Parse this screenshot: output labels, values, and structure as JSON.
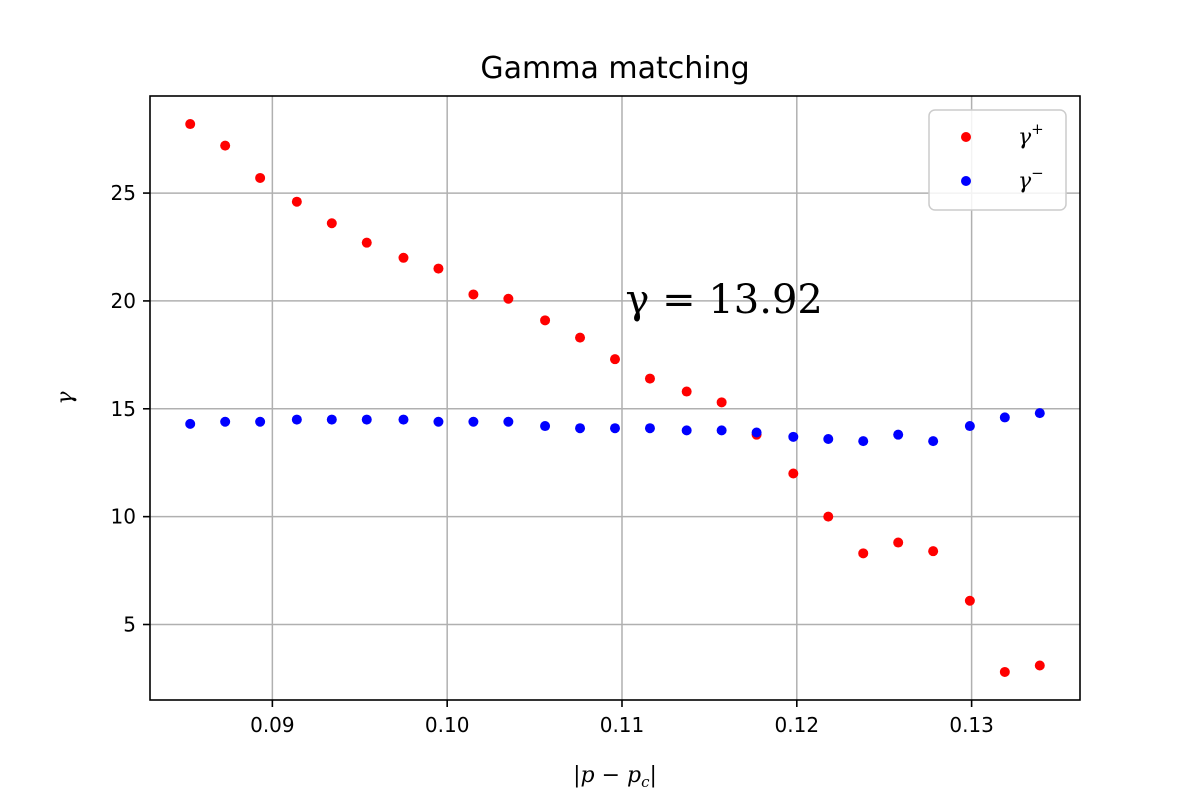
{
  "chart_data": {
    "type": "scatter",
    "title": "Gamma matching",
    "xlabel": "|p − p",
    "xlabel_sub": "c",
    "xlabel_end": "|",
    "ylabel": "γ",
    "xlim": [
      0.083,
      0.1362
    ],
    "ylim": [
      1.5,
      29.5
    ],
    "xticks": [
      0.09,
      0.1,
      0.11,
      0.12,
      0.13
    ],
    "xtick_labels": [
      "0.09",
      "0.10",
      "0.11",
      "0.12",
      "0.13"
    ],
    "yticks": [
      5,
      10,
      15,
      20,
      25
    ],
    "ytick_labels": [
      "5",
      "10",
      "15",
      "20",
      "25"
    ],
    "grid": true,
    "legend_position": "top-right",
    "annotation": {
      "text": "γ = 13.92",
      "x": 0.1102,
      "y": 20.1
    },
    "series": [
      {
        "name": "γ",
        "name_sup": "+",
        "color": "#ff0000",
        "x": [
          0.0853,
          0.0873,
          0.0893,
          0.0914,
          0.0934,
          0.0954,
          0.0975,
          0.0995,
          0.1015,
          0.1035,
          0.1056,
          0.1076,
          0.1096,
          0.1116,
          0.1137,
          0.1157,
          0.1177,
          0.1198,
          0.1218,
          0.1238,
          0.1258,
          0.1278,
          0.1299,
          0.1319,
          0.1339
        ],
        "y": [
          28.2,
          27.2,
          25.7,
          24.6,
          23.6,
          22.7,
          22.0,
          21.5,
          20.3,
          20.1,
          19.1,
          18.3,
          17.3,
          16.4,
          15.8,
          15.3,
          13.8,
          12.0,
          10.0,
          8.3,
          8.8,
          8.4,
          6.1,
          2.8,
          3.1
        ]
      },
      {
        "name": "γ",
        "name_sup": "−",
        "color": "#0000ff",
        "x": [
          0.0853,
          0.0873,
          0.0893,
          0.0914,
          0.0934,
          0.0954,
          0.0975,
          0.0995,
          0.1015,
          0.1035,
          0.1056,
          0.1076,
          0.1096,
          0.1116,
          0.1137,
          0.1157,
          0.1177,
          0.1198,
          0.1218,
          0.1238,
          0.1258,
          0.1278,
          0.1299,
          0.1319,
          0.1339
        ],
        "y": [
          14.3,
          14.4,
          14.4,
          14.5,
          14.5,
          14.5,
          14.5,
          14.4,
          14.4,
          14.4,
          14.2,
          14.1,
          14.1,
          14.1,
          14.0,
          14.0,
          13.9,
          13.7,
          13.6,
          13.5,
          13.8,
          13.5,
          14.2,
          14.6,
          14.8
        ]
      }
    ]
  }
}
